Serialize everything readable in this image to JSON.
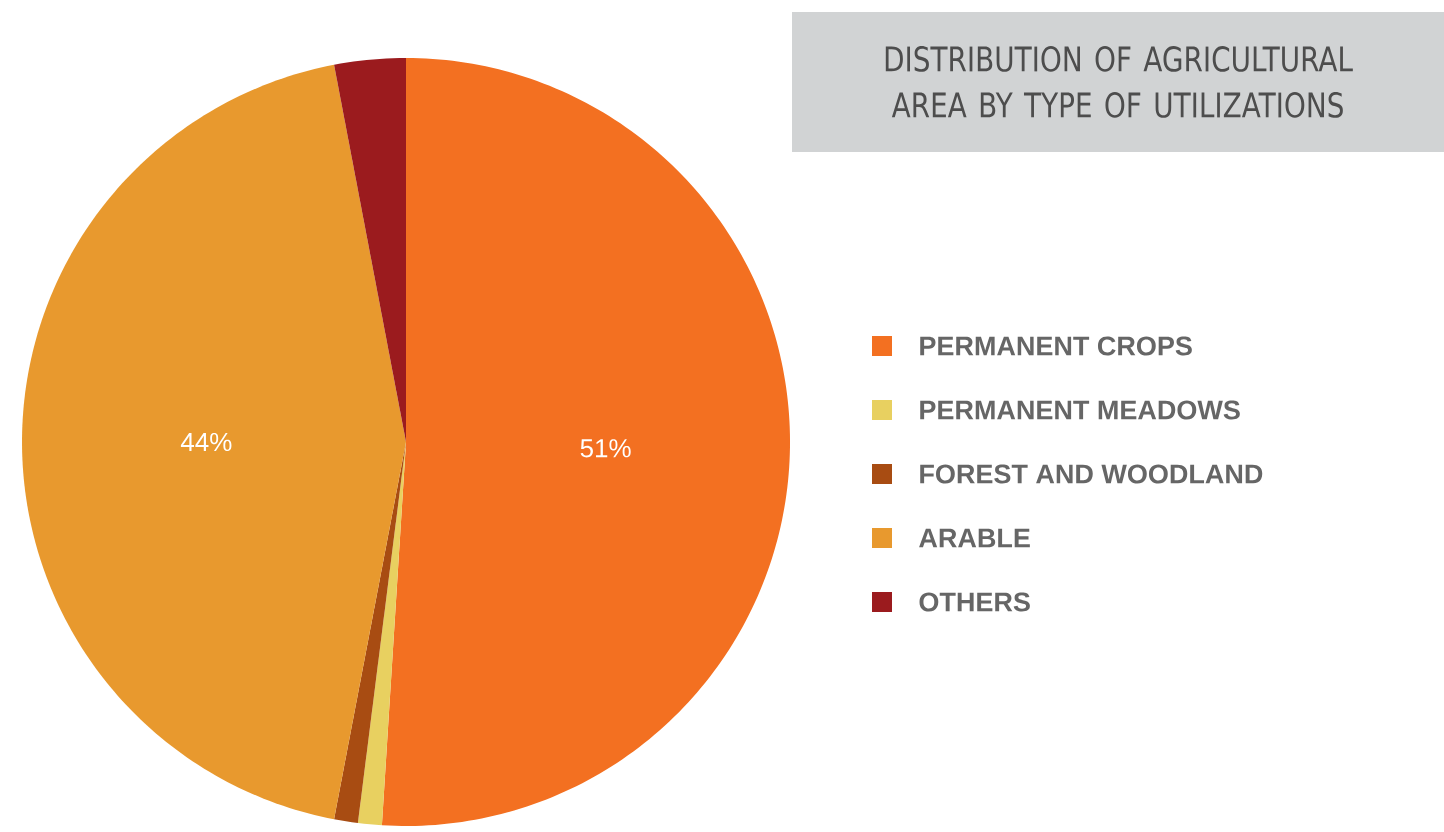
{
  "chart_data": {
    "type": "pie",
    "title": "DISTRIBUTION OF AGRICULTURAL AREA BY TYPE OF UTILIZATIONS",
    "categories": [
      "PERMANENT CROPS",
      "PERMANENT MEADOWS",
      "FOREST AND WOODLAND",
      "ARABLE",
      "OTHERS"
    ],
    "values": [
      51,
      1,
      1,
      44,
      3
    ],
    "colors": [
      "#f37021",
      "#e8d060",
      "#a84c12",
      "#e8992e",
      "#9b1b1e"
    ],
    "value_labels": [
      "51%",
      null,
      null,
      "44%",
      null
    ],
    "legend": "right"
  }
}
